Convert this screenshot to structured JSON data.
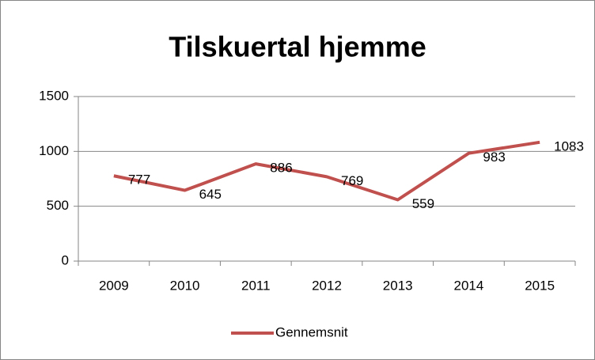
{
  "chart_data": {
    "type": "line",
    "title": "Tilskuertal hjemme",
    "categories": [
      "2009",
      "2010",
      "2011",
      "2012",
      "2013",
      "2014",
      "2015"
    ],
    "series": [
      {
        "name": "Gennemsnit",
        "color": "#c0504d",
        "values": [
          777,
          645,
          886,
          769,
          559,
          983,
          1083
        ]
      }
    ],
    "ylim": [
      0,
      1500
    ],
    "yticks": [
      0,
      500,
      1000,
      1500
    ],
    "grid": true,
    "legend": "bottom"
  }
}
